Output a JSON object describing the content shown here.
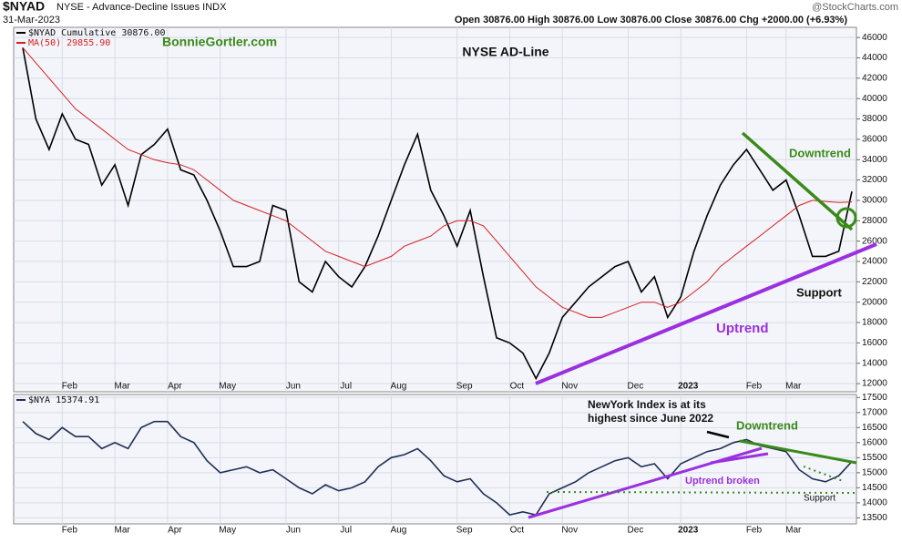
{
  "header": {
    "symbol": "$NYAD",
    "description": "NYSE - Advance-Decline Issues INDX",
    "date": "31-Mar-2023",
    "quote": "Open 30876.00 High 30876.00 Low 30876.00 Close 30876.00 Chg +2000.00 (+6.93%)",
    "credit": "@StockCharts.com"
  },
  "chart_data": [
    {
      "type": "line",
      "title": "NYSE AD-Line",
      "subtitle": "BonnieGortler.com",
      "annotations": [
        "Downtrend",
        "Support",
        "Uptrend"
      ],
      "categories": [
        null,
        null,
        null,
        "Feb",
        null,
        null,
        null,
        "Mar",
        null,
        null,
        null,
        "Apr",
        null,
        null,
        null,
        "May",
        null,
        null,
        null,
        null,
        "Jun",
        null,
        null,
        null,
        "Jul",
        null,
        null,
        null,
        "Aug",
        null,
        null,
        null,
        null,
        "Sep",
        null,
        null,
        null,
        "Oct",
        null,
        null,
        null,
        "Nov",
        null,
        null,
        null,
        null,
        "Dec",
        null,
        null,
        null,
        "2023",
        null,
        null,
        null,
        null,
        "Feb",
        null,
        null,
        "Mar",
        null,
        null,
        null,
        null,
        null
      ],
      "series": [
        {
          "name": "$NYAD Cumulative 30876.00",
          "color": "#000000",
          "values": [
            45000,
            38000,
            35000,
            38500,
            36000,
            35500,
            31500,
            33500,
            29500,
            34500,
            35500,
            37000,
            33000,
            32500,
            30000,
            27000,
            23500,
            23500,
            24000,
            29500,
            29000,
            22000,
            21000,
            24000,
            22500,
            21500,
            23500,
            26500,
            30000,
            33500,
            36500,
            31000,
            28500,
            25500,
            29000,
            22500,
            16500,
            16000,
            15000,
            12500,
            15000,
            18500,
            20000,
            21500,
            22500,
            23500,
            24000,
            21000,
            22500,
            18500,
            20500,
            25000,
            28500,
            31500,
            33500,
            35000,
            33000,
            31000,
            32000,
            28500,
            24500,
            24500,
            25000,
            30876
          ]
        },
        {
          "name": "MA(50) 29855.90",
          "color": "#d62020",
          "values": [
            45000,
            43500,
            42000,
            40500,
            39000,
            38000,
            37000,
            36000,
            35000,
            34500,
            34000,
            33700,
            33500,
            33000,
            32000,
            31000,
            30000,
            29500,
            29000,
            28500,
            28000,
            27000,
            26000,
            25000,
            24500,
            24000,
            23500,
            24000,
            24500,
            25500,
            26000,
            26500,
            27500,
            28000,
            28000,
            27500,
            26000,
            24500,
            23000,
            21500,
            20500,
            19500,
            19000,
            18500,
            18500,
            19000,
            19500,
            20000,
            20000,
            19500,
            20000,
            21000,
            22000,
            23500,
            24500,
            25500,
            26500,
            27500,
            28500,
            29500,
            30000,
            29900,
            29800,
            29855.9
          ]
        }
      ],
      "ylim": [
        11200,
        47000
      ],
      "yticks": [
        12000,
        14000,
        16000,
        18000,
        20000,
        22000,
        24000,
        26000,
        28000,
        30000,
        32000,
        34000,
        36000,
        38000,
        40000,
        42000,
        44000,
        46000
      ],
      "grid": true
    },
    {
      "type": "line",
      "annotations": [
        "Downtrend",
        "Uptrend broken",
        "Support"
      ],
      "annotation_lines": [
        "NewYork Index is at its",
        "highest since June 2022"
      ],
      "categories": [
        null,
        null,
        null,
        "Feb",
        null,
        null,
        null,
        "Mar",
        null,
        null,
        null,
        "Apr",
        null,
        null,
        null,
        "May",
        null,
        null,
        null,
        null,
        "Jun",
        null,
        null,
        null,
        "Jul",
        null,
        null,
        null,
        "Aug",
        null,
        null,
        null,
        null,
        "Sep",
        null,
        null,
        null,
        "Oct",
        null,
        null,
        null,
        "Nov",
        null,
        null,
        null,
        null,
        "Dec",
        null,
        null,
        null,
        "2023",
        null,
        null,
        null,
        null,
        "Feb",
        null,
        null,
        "Mar",
        null,
        null,
        null,
        null,
        null
      ],
      "series": [
        {
          "name": "$NYA 15374.91",
          "color": "#1f2f55",
          "values": [
            16700,
            16300,
            16100,
            16500,
            16200,
            16200,
            15800,
            16000,
            15800,
            16500,
            16700,
            16700,
            16200,
            16000,
            15400,
            15000,
            15100,
            15200,
            15000,
            15100,
            14800,
            14500,
            14300,
            14600,
            14400,
            14500,
            14700,
            15200,
            15500,
            15600,
            15800,
            15400,
            14900,
            14700,
            14800,
            14300,
            14000,
            13600,
            13700,
            13600,
            14300,
            14500,
            14700,
            15000,
            15200,
            15400,
            15500,
            15200,
            15300,
            14800,
            15300,
            15500,
            15700,
            15800,
            16000,
            16100,
            15900,
            15800,
            15700,
            15100,
            14800,
            14700,
            14900,
            15374.91
          ]
        }
      ],
      "ylim": [
        13300,
        17600
      ],
      "yticks": [
        13500,
        14000,
        14500,
        15000,
        15500,
        16000,
        16500,
        17000,
        17500
      ],
      "grid": true
    }
  ]
}
